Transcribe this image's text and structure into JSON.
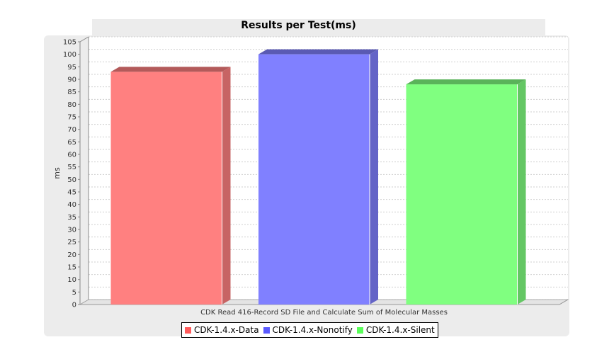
{
  "chart_data": {
    "type": "bar",
    "title": "Results per Test(ms)",
    "xlabel": "CDK Read 416-Record SD File and Calculate Sum of Molecular Masses",
    "ylabel": "ms",
    "categories": [
      "CDK Read 416-Record SD File and Calculate Sum of Molecular Masses"
    ],
    "series": [
      {
        "name": "CDK-1.4.x-Data",
        "values": [
          93
        ],
        "color": "#ff8080"
      },
      {
        "name": "CDK-1.4.x-Nonotify",
        "values": [
          100
        ],
        "color": "#8080ff"
      },
      {
        "name": "CDK-1.4.x-Silent",
        "values": [
          88
        ],
        "color": "#80ff80"
      }
    ],
    "ylim": [
      0,
      105
    ],
    "yticks": [
      0,
      5,
      10,
      15,
      20,
      25,
      30,
      35,
      40,
      45,
      50,
      55,
      60,
      65,
      70,
      75,
      80,
      85,
      90,
      95,
      100,
      105
    ],
    "grid": true,
    "legend_position": "bottom",
    "render_3d": true
  }
}
